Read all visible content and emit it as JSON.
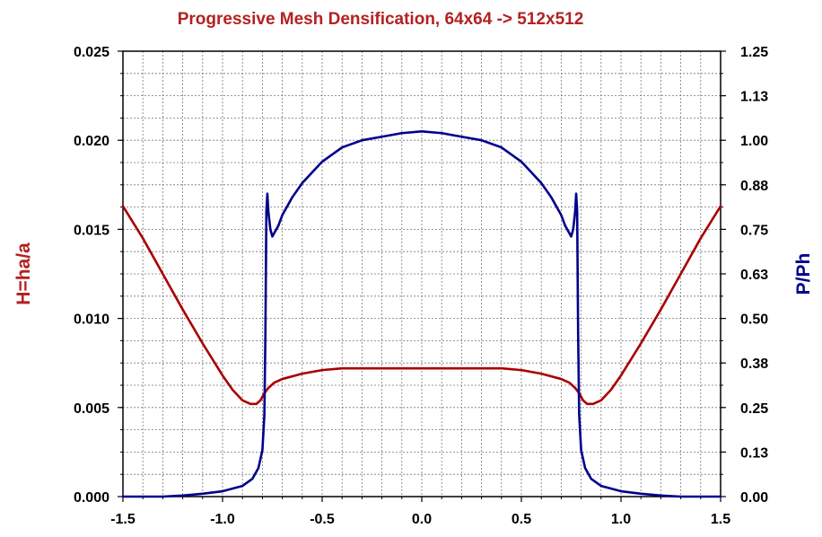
{
  "chart_data": {
    "type": "line",
    "title": "Progressive Mesh Densification, 64x64 -> 512x512",
    "xlabel": "",
    "ylabel_left": "H=ha/a",
    "ylabel_right": "P/Ph",
    "xlim": [
      -1.5,
      1.5
    ],
    "ylim_left": [
      0.0,
      0.025
    ],
    "ylim_right": [
      0.0,
      1.25
    ],
    "x_ticks": [
      "-1.5",
      "-1.0",
      "-0.5",
      "0.0",
      "0.5",
      "1.0",
      "1.5"
    ],
    "y_ticks_left": [
      "0.000",
      "0.005",
      "0.010",
      "0.015",
      "0.020",
      "0.025"
    ],
    "y_ticks_right": [
      "0.00",
      "0.13",
      "0.25",
      "0.38",
      "0.50",
      "0.63",
      "0.75",
      "0.88",
      "1.00",
      "1.13",
      "1.25"
    ],
    "grid": true,
    "colors": {
      "title": "#b22222",
      "ylabel_left": "#b22222",
      "ylabel_right": "#00008b",
      "series_H": "#aa0000",
      "series_P": "#00008b",
      "grid": "#777777"
    },
    "series": [
      {
        "name": "H=ha/a",
        "axis": "left",
        "x": [
          -1.5,
          -1.4,
          -1.3,
          -1.2,
          -1.1,
          -1.0,
          -0.95,
          -0.9,
          -0.86,
          -0.83,
          -0.81,
          -0.79,
          -0.77,
          -0.74,
          -0.7,
          -0.6,
          -0.5,
          -0.4,
          -0.3,
          -0.2,
          -0.1,
          0.0,
          0.1,
          0.2,
          0.3,
          0.4,
          0.5,
          0.6,
          0.7,
          0.74,
          0.77,
          0.79,
          0.81,
          0.83,
          0.86,
          0.9,
          0.95,
          1.0,
          1.1,
          1.2,
          1.3,
          1.4,
          1.5
        ],
        "values": [
          0.0163,
          0.0145,
          0.0125,
          0.0105,
          0.0086,
          0.0068,
          0.006,
          0.0054,
          0.0052,
          0.0052,
          0.0054,
          0.0058,
          0.0061,
          0.0064,
          0.0066,
          0.0069,
          0.0071,
          0.0072,
          0.0072,
          0.0072,
          0.0072,
          0.0072,
          0.0072,
          0.0072,
          0.0072,
          0.0072,
          0.0071,
          0.0069,
          0.0066,
          0.0064,
          0.0061,
          0.0058,
          0.0054,
          0.0052,
          0.0052,
          0.0054,
          0.006,
          0.0068,
          0.0086,
          0.0105,
          0.0125,
          0.0145,
          0.0163
        ]
      },
      {
        "name": "P/Ph",
        "axis": "right",
        "x": [
          -1.5,
          -1.3,
          -1.2,
          -1.1,
          -1.0,
          -0.9,
          -0.85,
          -0.82,
          -0.8,
          -0.79,
          -0.785,
          -0.78,
          -0.775,
          -0.77,
          -0.76,
          -0.75,
          -0.74,
          -0.72,
          -0.7,
          -0.65,
          -0.6,
          -0.5,
          -0.4,
          -0.3,
          -0.2,
          -0.1,
          0.0,
          0.1,
          0.2,
          0.3,
          0.4,
          0.5,
          0.6,
          0.65,
          0.7,
          0.72,
          0.74,
          0.75,
          0.76,
          0.77,
          0.775,
          0.78,
          0.785,
          0.79,
          0.8,
          0.82,
          0.85,
          0.9,
          1.0,
          1.1,
          1.2,
          1.3,
          1.5
        ],
        "values": [
          0.0,
          0.0,
          0.003,
          0.008,
          0.015,
          0.03,
          0.05,
          0.08,
          0.13,
          0.23,
          0.45,
          0.8,
          0.85,
          0.8,
          0.75,
          0.73,
          0.74,
          0.76,
          0.79,
          0.84,
          0.88,
          0.94,
          0.98,
          1.0,
          1.01,
          1.02,
          1.025,
          1.02,
          1.01,
          1.0,
          0.98,
          0.94,
          0.88,
          0.84,
          0.79,
          0.76,
          0.74,
          0.73,
          0.75,
          0.8,
          0.85,
          0.8,
          0.45,
          0.23,
          0.13,
          0.08,
          0.05,
          0.03,
          0.015,
          0.008,
          0.003,
          0.0,
          0.0
        ]
      }
    ]
  }
}
